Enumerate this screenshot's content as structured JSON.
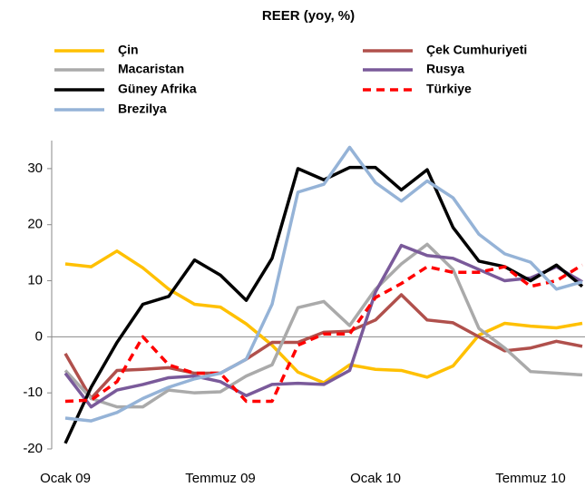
{
  "chart_data": {
    "type": "line",
    "title": "REER (yoy, %)",
    "categories": [
      "Ocak 09",
      null,
      null,
      null,
      null,
      null,
      "Temmuz 09",
      null,
      null,
      null,
      null,
      null,
      "Ocak 10",
      null,
      null,
      null,
      null,
      null,
      "Temmuz 10",
      null,
      null
    ],
    "ylim": [
      -20,
      35
    ],
    "yticks": [
      -20,
      -10,
      0,
      10,
      20,
      30
    ],
    "grid": false,
    "series": [
      {
        "name": "Çin",
        "color": "#ffc000",
        "values": [
          13,
          12.5,
          15.3,
          12.3,
          8.5,
          5.8,
          5.3,
          2.3,
          -1.5,
          -6.3,
          -8.2,
          -5,
          -5.8,
          -6,
          -7.2,
          -5.2,
          0.3,
          2.4,
          1.9,
          1.6,
          2.4
        ]
      },
      {
        "name": "Çek Cumhuriyeti",
        "color": "#b0504c",
        "values": [
          -3,
          -11,
          -6,
          -5.8,
          -5.5,
          -6.5,
          -6.5,
          -4,
          -1,
          -1,
          0.8,
          1,
          3,
          7.5,
          3,
          2.5,
          0,
          -2.5,
          -2,
          -0.8,
          -1.7
        ]
      },
      {
        "name": "Macaristan",
        "color": "#aaaaaa",
        "values": [
          -6,
          -11,
          -12.5,
          -12.5,
          -9.5,
          -10,
          -9.8,
          -7,
          -5,
          5.2,
          6.3,
          2,
          8.5,
          13,
          16.5,
          12,
          1.5,
          -2,
          -6.2,
          -6.5,
          -6.8
        ]
      },
      {
        "name": "Rusya",
        "color": "#7a5a9a",
        "values": [
          -6.5,
          -12.5,
          -9.5,
          -8.5,
          -7.3,
          -7,
          -8,
          -10.5,
          -8.5,
          -8.3,
          -8.5,
          -6,
          8,
          16.3,
          14.5,
          14,
          12,
          10,
          10.5,
          12.5,
          9.8
        ]
      },
      {
        "name": "Güney Afrika",
        "color": "#000000",
        "values": [
          -19,
          -9,
          -1,
          5.8,
          7.2,
          13.7,
          11,
          6.5,
          14,
          30,
          28,
          30.2,
          30.2,
          26.2,
          29.8,
          19.5,
          13.5,
          12.5,
          10,
          12.8,
          9
        ]
      },
      {
        "name": "Türkiye",
        "color": "#ff0000",
        "dashed": true,
        "values": [
          -11.5,
          -11.3,
          -8,
          0,
          -5,
          -6.5,
          -6.5,
          -11.5,
          -11.5,
          -1.5,
          0.5,
          0.5,
          7,
          9.5,
          12.5,
          11.5,
          11.5,
          12.5,
          9,
          10,
          12.8
        ]
      },
      {
        "name": "Brezilya",
        "color": "#95b3d7",
        "values": [
          -14.5,
          -15,
          -13.5,
          -11,
          -9,
          -7.5,
          -6.5,
          -4,
          5.8,
          25.8,
          27.2,
          33.8,
          27.5,
          24.2,
          27.8,
          24.8,
          18.3,
          14.8,
          13.3,
          8.5,
          9.8
        ]
      }
    ]
  }
}
